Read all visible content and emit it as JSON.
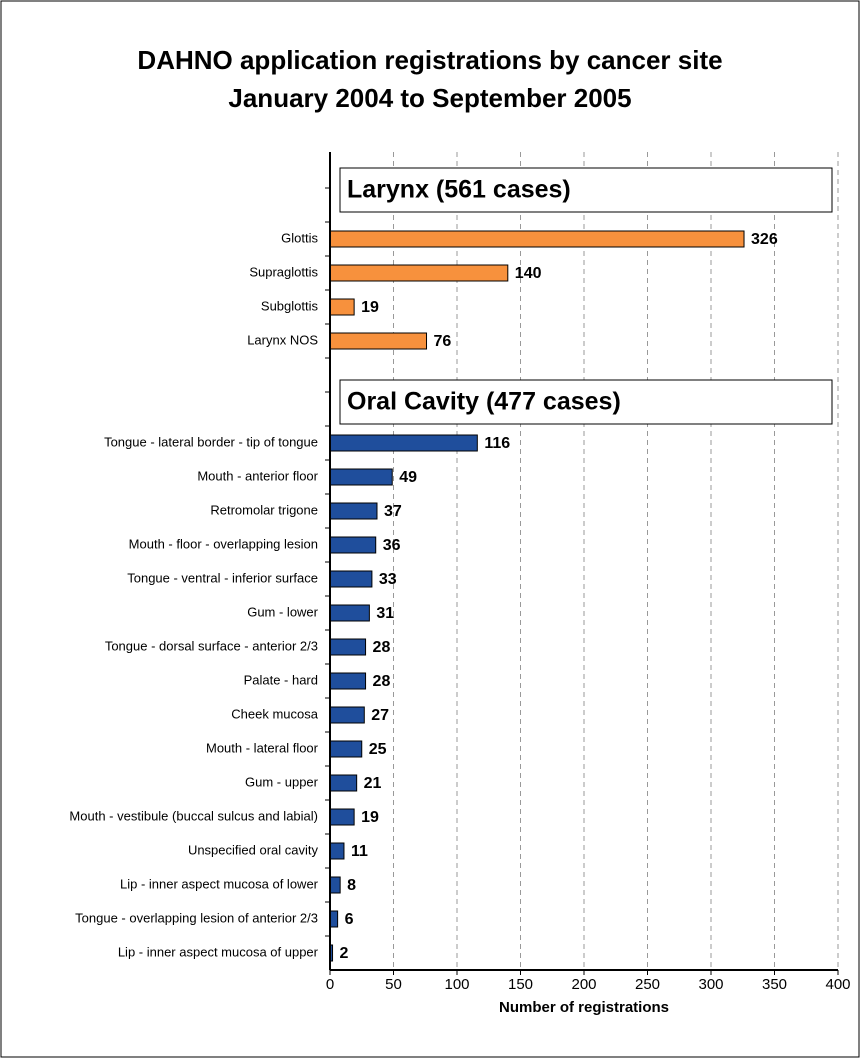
{
  "chart_data": {
    "type": "bar",
    "orientation": "horizontal",
    "title": "DAHNO application registrations by cancer site",
    "subtitle": "January 2004 to September 2005",
    "x_label": "Number of registrations",
    "xlim": [
      0,
      400
    ],
    "xticks": [
      0,
      50,
      100,
      150,
      200,
      250,
      300,
      350,
      400
    ],
    "grid": true,
    "groups": [
      {
        "name": "Larynx (561 cases)",
        "color": "#f7913d",
        "categories": [
          "Glottis",
          "Supraglottis",
          "Subglottis",
          "Larynx NOS"
        ],
        "values": [
          326,
          140,
          19,
          76
        ]
      },
      {
        "name": "Oral Cavity (477 cases)",
        "color": "#1f4e9c",
        "categories": [
          "Tongue - lateral border - tip of tongue",
          "Mouth - anterior floor",
          "Retromolar trigone",
          "Mouth - floor - overlapping lesion",
          "Tongue - ventral - inferior surface",
          "Gum - lower",
          "Tongue - dorsal surface - anterior 2/3",
          "Palate - hard",
          "Cheek mucosa",
          "Mouth - lateral floor",
          "Gum - upper",
          "Mouth - vestibule (buccal sulcus and labial)",
          "Unspecified oral cavity",
          "Lip - inner aspect mucosa of lower",
          "Tongue - overlapping lesion of anterior 2/3",
          "Lip - inner aspect mucosa of upper"
        ],
        "values": [
          116,
          49,
          37,
          36,
          33,
          31,
          28,
          28,
          27,
          25,
          21,
          19,
          11,
          8,
          6,
          2
        ]
      }
    ]
  }
}
